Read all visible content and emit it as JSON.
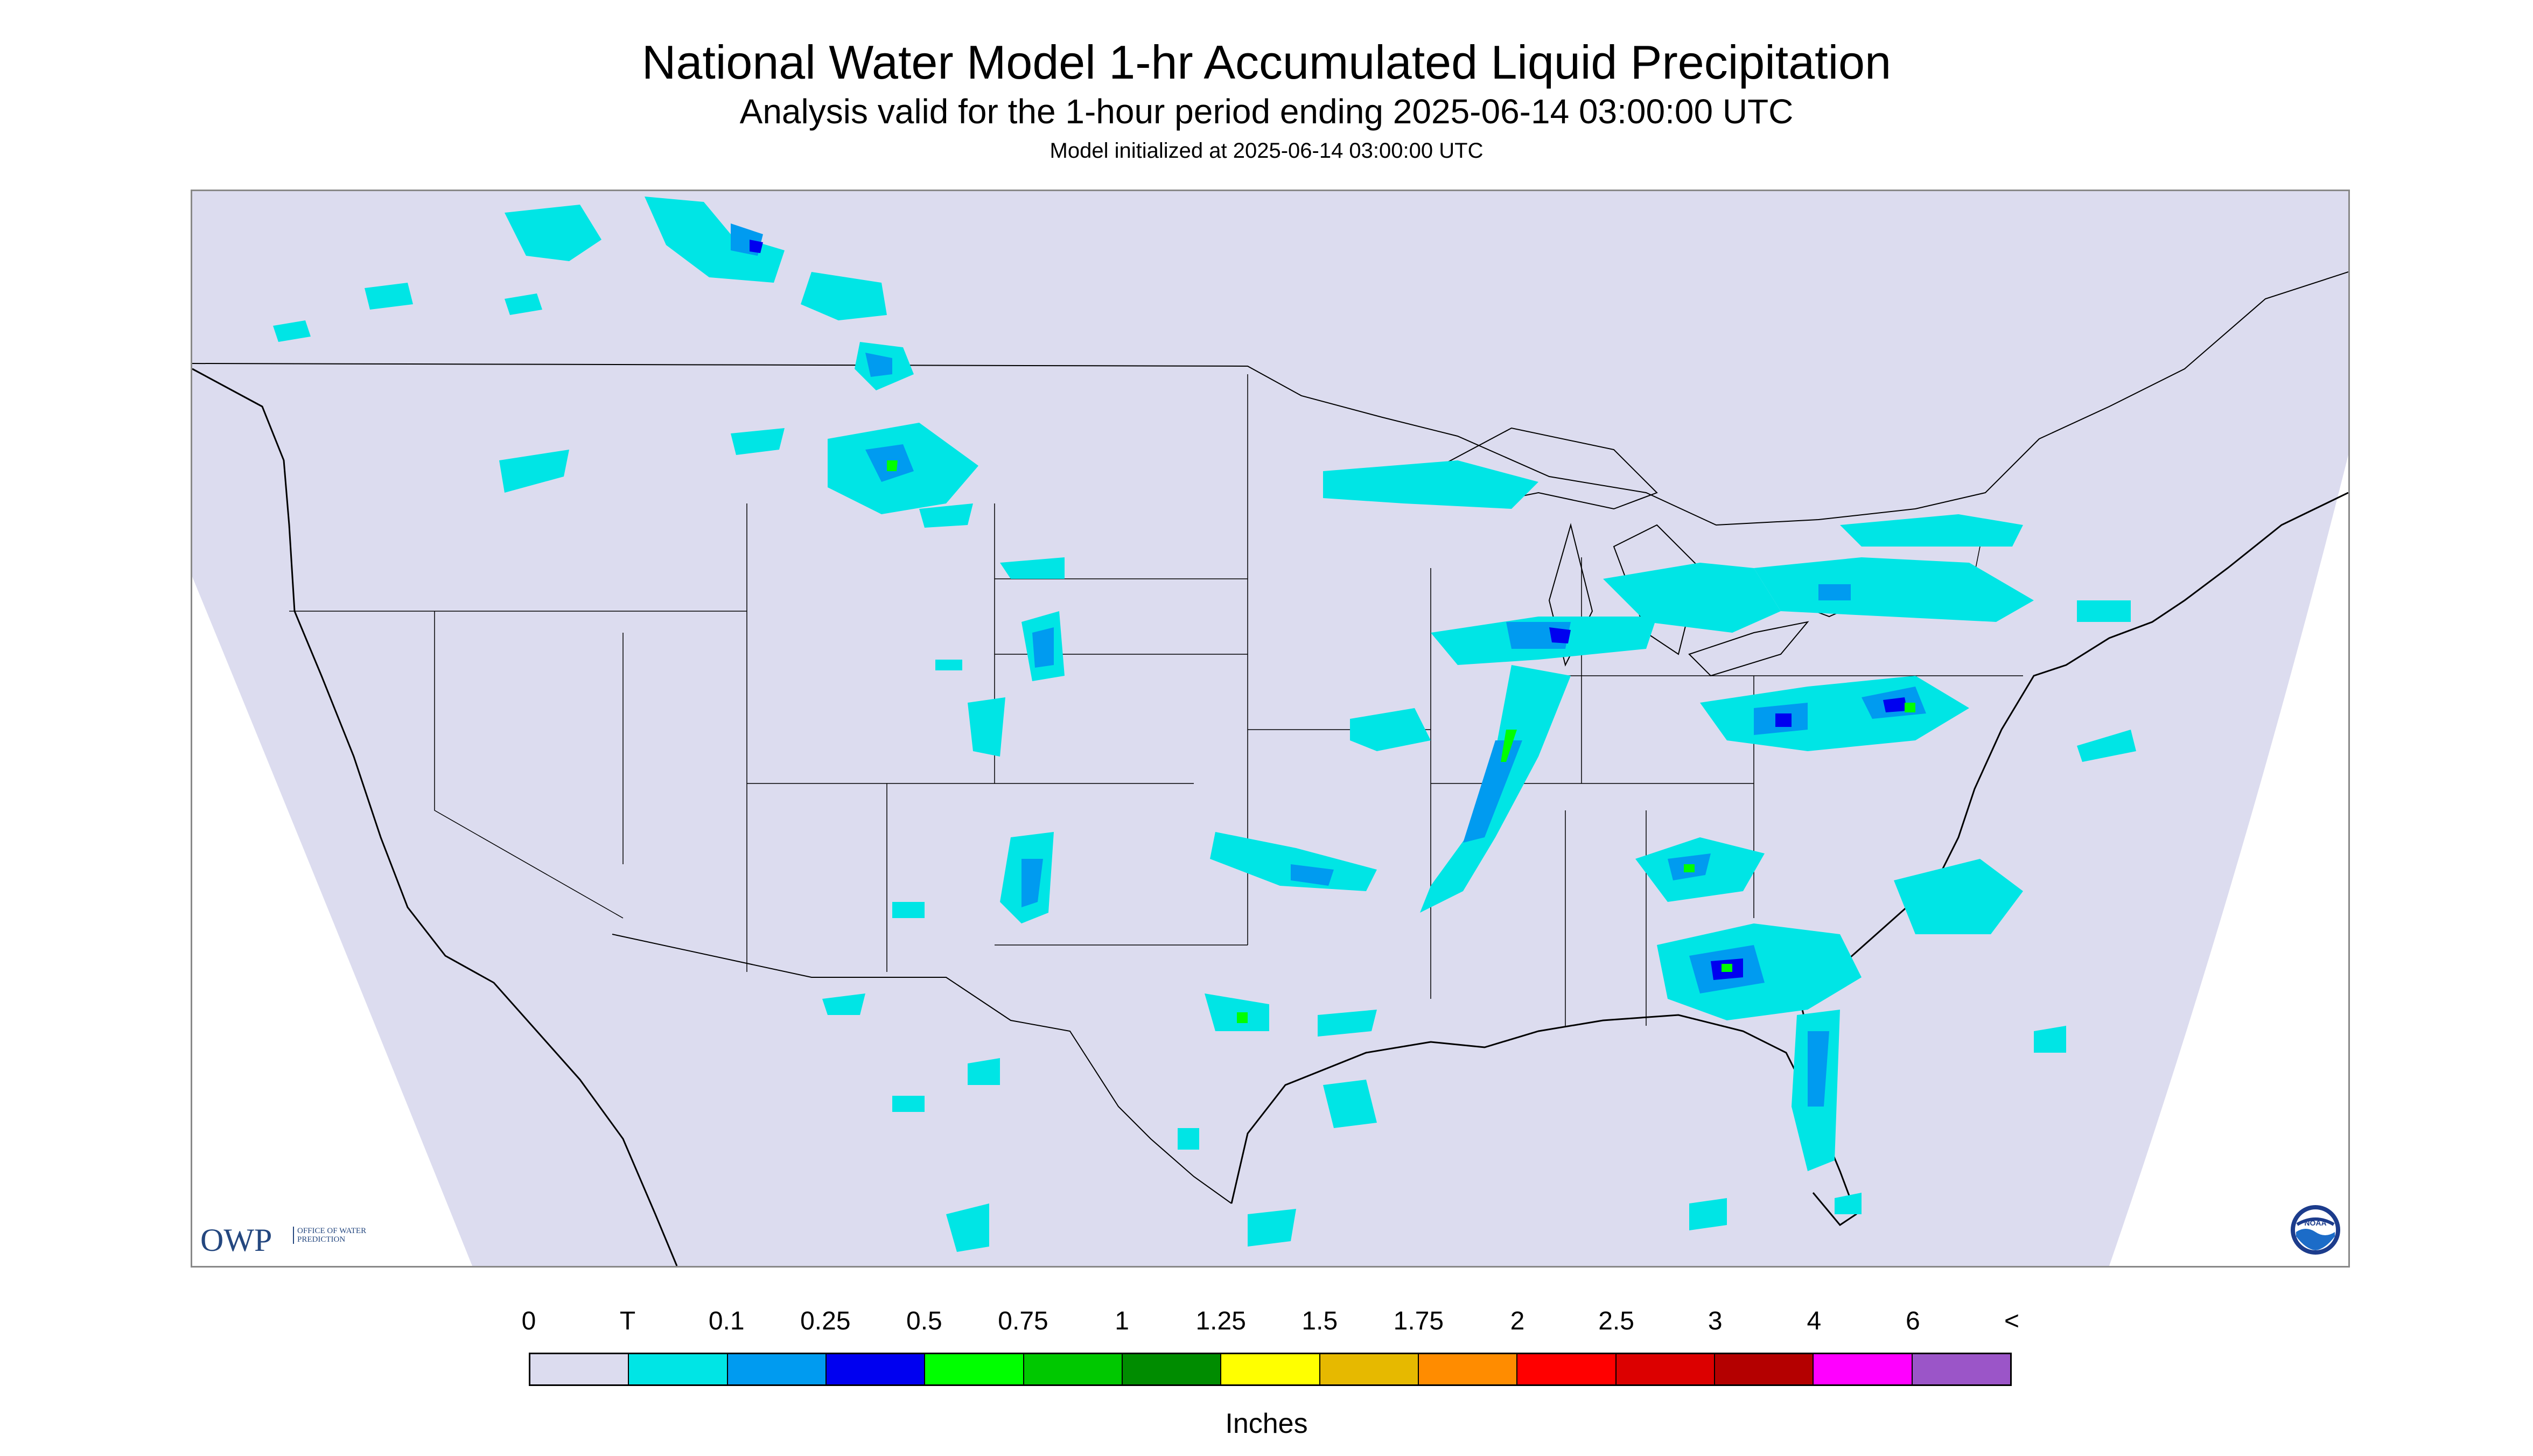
{
  "header": {
    "title": "National Water Model 1-hr Accumulated Liquid Precipitation",
    "subtitle": "Analysis valid for the 1-hour period ending 2025-06-14 03:00:00 UTC",
    "init": "Model initialized at 2025-06-14 03:00:00 UTC"
  },
  "map": {
    "background_color": "#dcdcef",
    "outside_color": "#ffffff",
    "border_color": "#000000",
    "logos": {
      "owp_letters": "OWP",
      "owp_text": "OFFICE OF WATER PREDICTION",
      "noaa_text": "NOAA"
    }
  },
  "legend": {
    "labels": [
      "0",
      "T",
      "0.1",
      "0.25",
      "0.5",
      "0.75",
      "1",
      "1.25",
      "1.5",
      "1.75",
      "2",
      "2.5",
      "3",
      "4",
      "6",
      "<"
    ],
    "colors": [
      "#dcdcef",
      "#00e5e5",
      "#009bf0",
      "#0000f0",
      "#00ff00",
      "#00c800",
      "#008c00",
      "#ffff00",
      "#e6b900",
      "#ff8c00",
      "#ff0000",
      "#dc0000",
      "#b40000",
      "#ff00ff",
      "#9b55c8"
    ],
    "units": "Inches"
  }
}
